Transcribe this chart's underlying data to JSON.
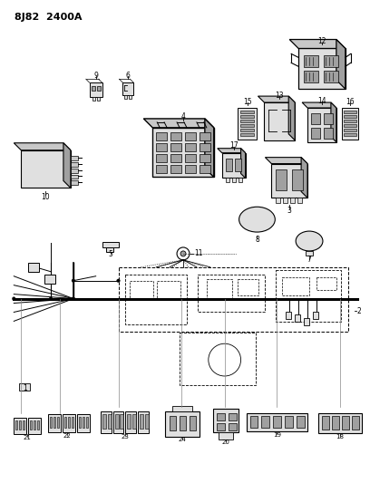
{
  "title": "8J82  2400A",
  "bg_color": "#ffffff",
  "lc": "#000000",
  "fig_width": 4.08,
  "fig_height": 5.33,
  "dpi": 100,
  "gray1": "#c8c8c8",
  "gray2": "#e0e0e0",
  "gray3": "#a0a0a0",
  "gray4": "#b0b0b0"
}
